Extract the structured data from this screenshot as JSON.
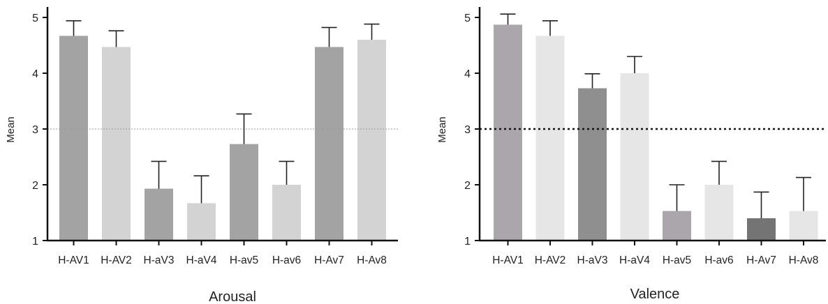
{
  "chart_data": [
    {
      "type": "bar",
      "xlabel": "Arousal",
      "ylabel": "Mean",
      "ylim": [
        1,
        5
      ],
      "yticks": [
        1,
        2,
        3,
        4,
        5
      ],
      "reference_line": {
        "value": 3,
        "style": "thin-dotted"
      },
      "grid": false,
      "error_bars": "upper-only",
      "categories": [
        "H-AV1",
        "H-AV2",
        "H-aV3",
        "H-aV4",
        "H-av5",
        "H-av6",
        "H-Av7",
        "H-Av8"
      ],
      "values": [
        4.67,
        4.47,
        1.93,
        1.67,
        2.73,
        2.0,
        4.47,
        4.6
      ],
      "error_upper": [
        4.94,
        4.76,
        2.42,
        2.16,
        3.27,
        2.42,
        4.82,
        4.88
      ],
      "colors": [
        "#a3a3a3",
        "#d3d3d3",
        "#a3a3a3",
        "#d3d3d3",
        "#a3a3a3",
        "#d3d3d3",
        "#a3a3a3",
        "#d3d3d3"
      ]
    },
    {
      "type": "bar",
      "xlabel": "Valence",
      "ylabel": "Mean",
      "ylim": [
        1,
        5
      ],
      "yticks": [
        1,
        2,
        3,
        4,
        5
      ],
      "reference_line": {
        "value": 3,
        "style": "bold-dotted"
      },
      "grid": false,
      "error_bars": "upper-only",
      "categories": [
        "H-AV1",
        "H-AV2",
        "H-aV3",
        "H-aV4",
        "H-av5",
        "H-av6",
        "H-Av7",
        "H-Av8"
      ],
      "values": [
        4.87,
        4.67,
        3.73,
        4.0,
        1.53,
        2.0,
        1.4,
        1.53
      ],
      "error_upper": [
        5.06,
        4.94,
        3.99,
        4.3,
        2.0,
        2.42,
        1.87,
        2.13
      ],
      "colors": [
        "#aaa6ac",
        "#e6e6e6",
        "#8f8f8f",
        "#e6e6e6",
        "#aaa6ac",
        "#e6e6e6",
        "#747474",
        "#e6e6e6"
      ]
    }
  ]
}
